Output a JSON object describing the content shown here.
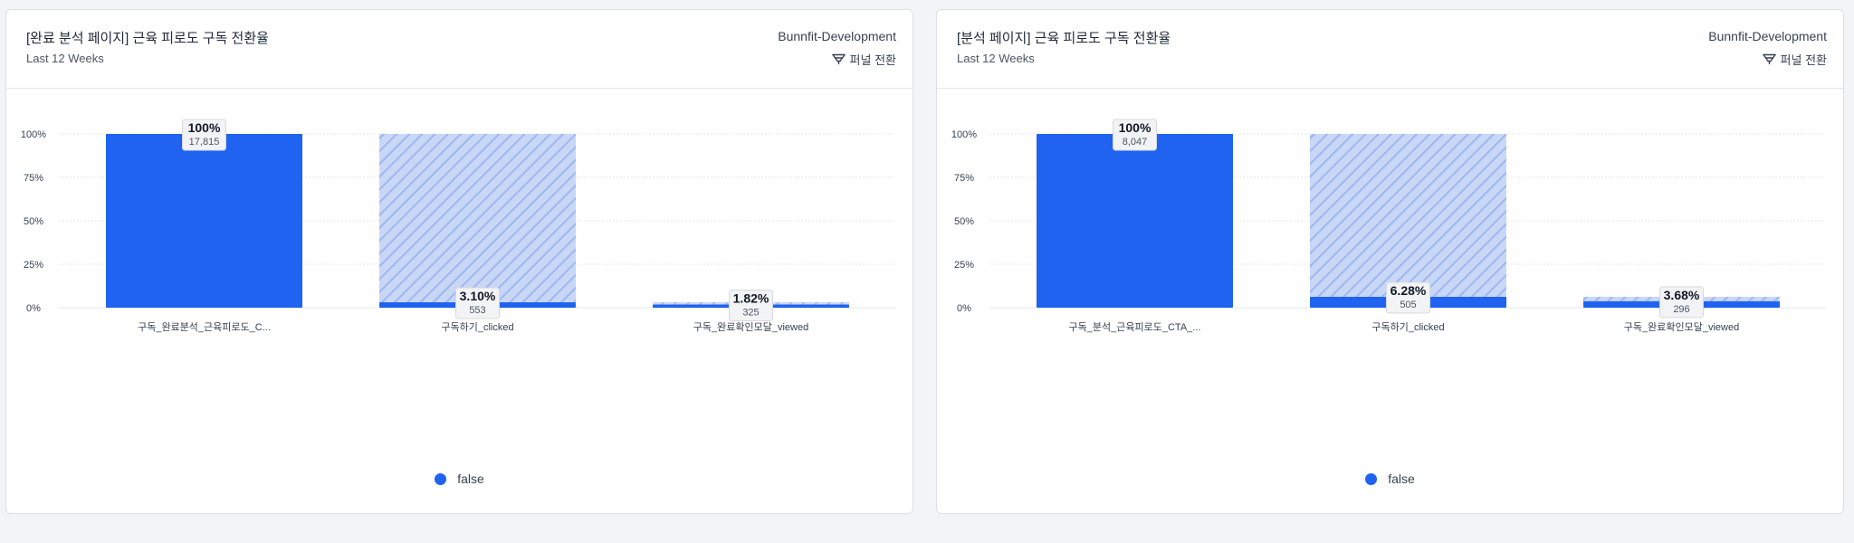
{
  "colors": {
    "bar": "#1f63f0",
    "hatch_bg": "#c9d7f7",
    "hatch_line": "#9db7ef",
    "grid": "#e3e5e8",
    "label_bg": "#f2f3f5"
  },
  "cards": [
    {
      "title": "[완료 분석 페이지] 근육 피로도 구독 전환율",
      "subtitle": "Last 12 Weeks",
      "project": "Bunnfit-Development",
      "funnel_label": "퍼널 전환",
      "funnel_icon": "funnel-icon",
      "legend": {
        "label": "false",
        "color": "#1f63f0"
      },
      "chart_data": {
        "type": "bar",
        "categories": [
          "구독_완료분석_근육피로도_C...",
          "구독하기_clicked",
          "구독_완료확인모달_viewed"
        ],
        "values": [
          100,
          3.1,
          1.82
        ],
        "percent_labels": [
          "100%",
          "3.10%",
          "1.82%"
        ],
        "counts": [
          "17,815",
          "553",
          "325"
        ],
        "prev_values": [
          null,
          100,
          3.1
        ],
        "y_ticks": [
          "100%",
          "75%",
          "50%",
          "25%",
          "0%"
        ],
        "ylim": [
          0,
          100
        ],
        "grid": true,
        "legend_position": "bottom-center"
      }
    },
    {
      "title": "[분석 페이지] 근육 피로도 구독 전환율",
      "subtitle": "Last 12 Weeks",
      "project": "Bunnfit-Development",
      "funnel_label": "퍼널 전환",
      "funnel_icon": "funnel-icon",
      "legend": {
        "label": "false",
        "color": "#1f63f0"
      },
      "chart_data": {
        "type": "bar",
        "categories": [
          "구독_분석_근육피로도_CTA_...",
          "구독하기_clicked",
          "구독_완료확인모달_viewed"
        ],
        "values": [
          100,
          6.28,
          3.68
        ],
        "percent_labels": [
          "100%",
          "6.28%",
          "3.68%"
        ],
        "counts": [
          "8,047",
          "505",
          "296"
        ],
        "prev_values": [
          null,
          100,
          6.28
        ],
        "y_ticks": [
          "100%",
          "75%",
          "50%",
          "25%",
          "0%"
        ],
        "ylim": [
          0,
          100
        ],
        "grid": true,
        "legend_position": "bottom-center"
      }
    }
  ]
}
